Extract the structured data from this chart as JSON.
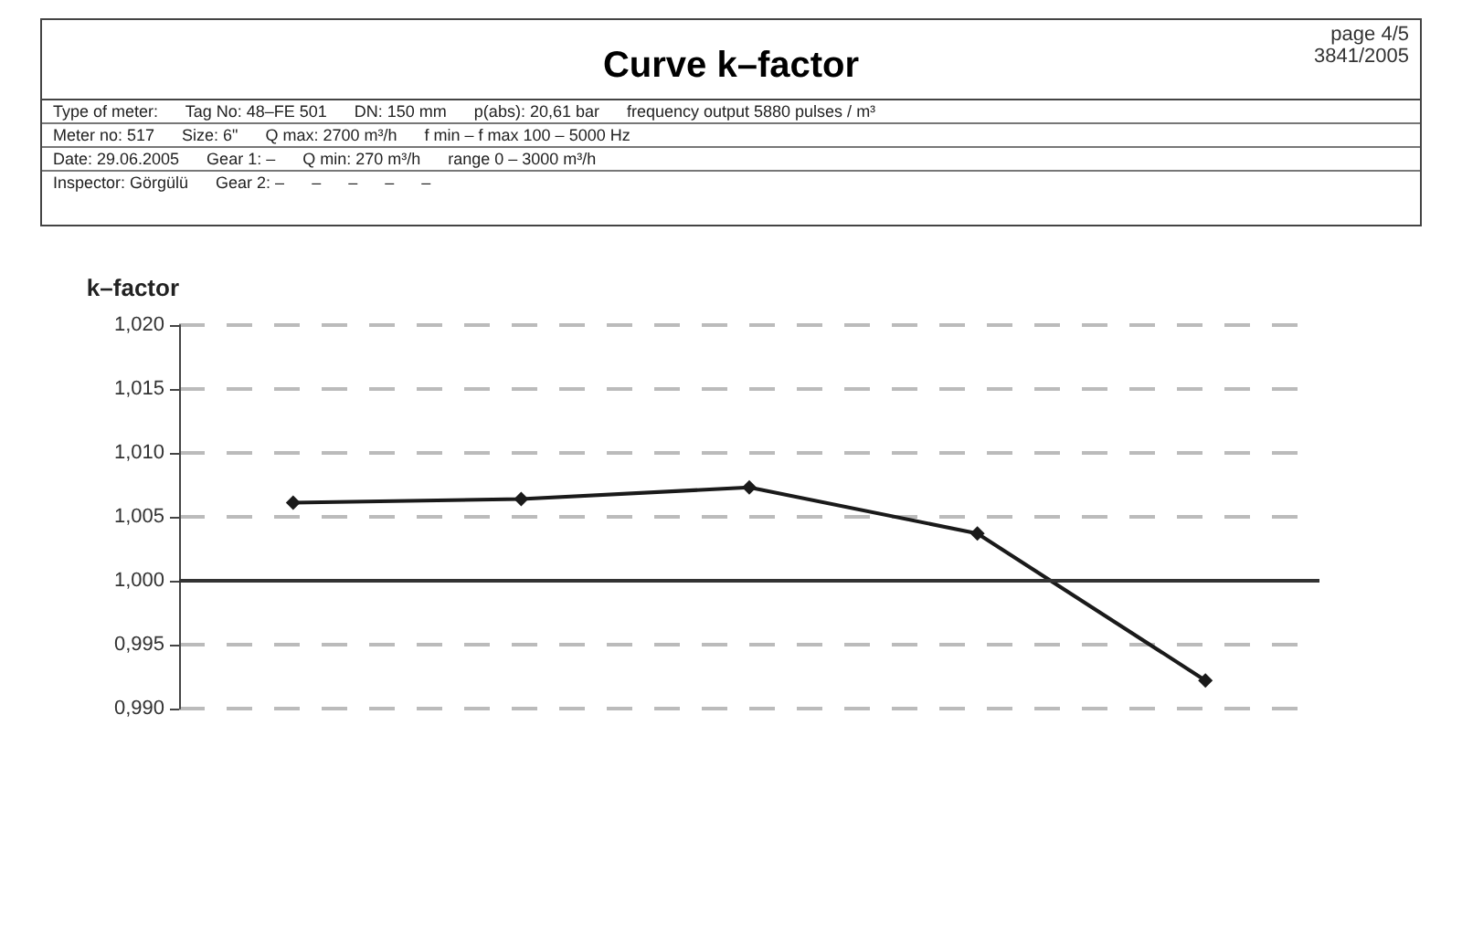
{
  "chart_data": {
    "type": "line",
    "title": "Curve k–factor",
    "ylabel": "k–factor",
    "annotations": [
      "page 4/5",
      "3841/2005",
      "Type of meter:      Tag No: 48–FE 501      DN: 150 mm      p(abs): 20,61 bar      frequency output 5880 pulses / m³",
      "Meter no: 517      Size: 6\"      Q max: 2700 m³/h      f min – f max 100 – 5000 Hz",
      "Date: 29.06.2005      Gear 1: –      Q min: 270 m³/h      range 0 – 3000 m³/h",
      "Inspector: Görgülü      Gear 2: –      –      –      –      –"
    ],
    "categories": [
      null,
      null,
      null,
      null,
      null
    ],
    "series": [
      {
        "color": "#1a1a1a",
        "values": [
          1.0061,
          1.0064,
          1.0073,
          1.0037,
          0.9922
        ]
      }
    ],
    "ylim": [
      0.99,
      1.02
    ],
    "yticks": [
      {
        "value": 0.99,
        "label": "0,990"
      },
      {
        "value": 0.995,
        "label": "0,995"
      },
      {
        "value": 1.0,
        "label": "1,000"
      },
      {
        "value": 1.005,
        "label": "1,005"
      },
      {
        "value": 1.01,
        "label": "1,010"
      },
      {
        "value": 1.015,
        "label": "1,015"
      },
      {
        "value": 1.02,
        "label": "1,020"
      }
    ],
    "ref_lines": [
      {
        "axis": "y",
        "value": 1.0,
        "color": "#333333",
        "line_style": "solid"
      }
    ],
    "grid": "y",
    "marker": "diamond",
    "line_style": "solid"
  }
}
